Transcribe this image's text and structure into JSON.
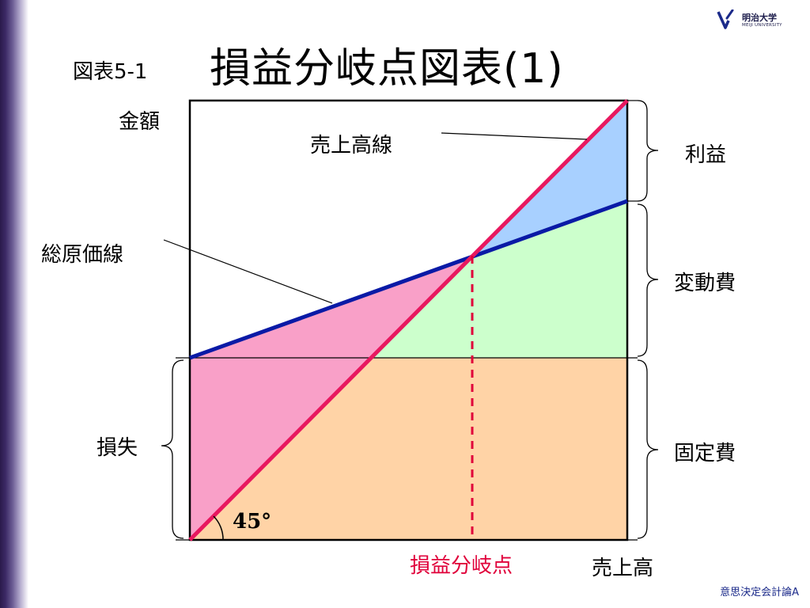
{
  "logo": {
    "text_jp": "明治大学",
    "text_en": "MEIJI UNIVERSITY"
  },
  "header": {
    "figure_number": "図表5-1",
    "title": "損益分岐点図表(1)"
  },
  "diagram": {
    "y_axis_label": "金額",
    "x_axis_label": "売上高",
    "sales_line_label": "売上高線",
    "total_cost_line_label": "総原価線",
    "breakeven_label": "損益分岐点",
    "angle_label": "45°",
    "brace_profit": "利益",
    "brace_variable_cost": "変動費",
    "brace_fixed_cost": "固定費",
    "brace_loss": "損失",
    "colors": {
      "sales_line": "#e8185f",
      "total_cost_line": "#0a1aa6",
      "profit_region": "#a8d0ff",
      "loss_region": "#f9a0c8",
      "variable_cost_region": "#ccffcc",
      "fixed_cost_region": "#ffd3a6",
      "breakeven_marker": "#e0003a"
    }
  },
  "footer": {
    "course_name": "意思決定会計論A"
  }
}
